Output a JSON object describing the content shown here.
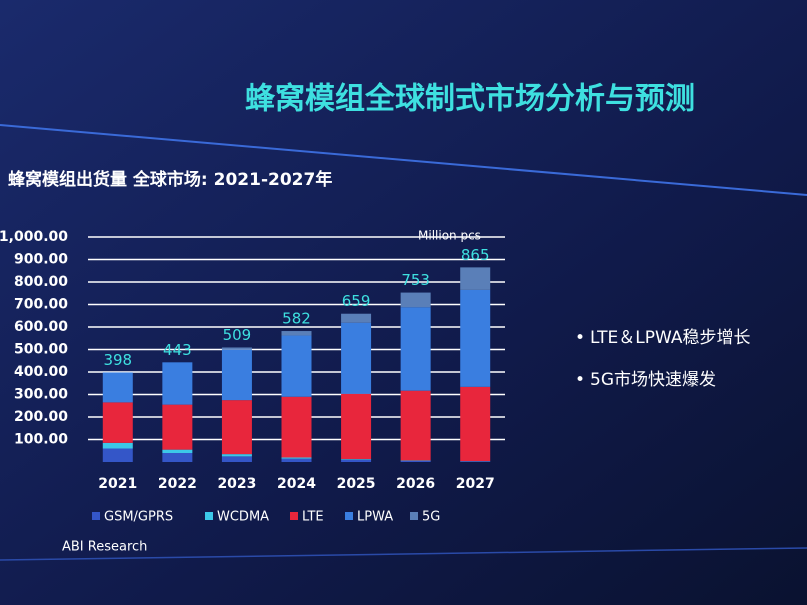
{
  "chart_data": {
    "type": "stacked-bar",
    "title": "蜂窝模组全球制式市场分析与预测",
    "subtitle": "蜂窝模组出货量  全球市场: 2021-2027年",
    "unit": "Million pcs",
    "categories": [
      "2021",
      "2022",
      "2023",
      "2024",
      "2025",
      "2026",
      "2027"
    ],
    "series": [
      {
        "name": "GSM/GPRS",
        "color": "#3456c8",
        "values": [
          60,
          40,
          25,
          15,
          10,
          5,
          3
        ]
      },
      {
        "name": "WCDMA",
        "color": "#3cc8e8",
        "values": [
          25,
          15,
          10,
          5,
          3,
          2,
          1
        ]
      },
      {
        "name": "LTE",
        "color": "#e8263c",
        "values": [
          180,
          200,
          240,
          270,
          290,
          310,
          330
        ]
      },
      {
        "name": "LPWA",
        "color": "#3a7ee0",
        "values": [
          133,
          188,
          224,
          272,
          316,
          371,
          431
        ]
      },
      {
        "name": "5G",
        "color": "#5a7fb8",
        "values": [
          0,
          0,
          10,
          20,
          40,
          65,
          100
        ]
      }
    ],
    "totals": [
      398,
      443,
      509,
      582,
      659,
      753,
      865
    ],
    "ylim": [
      0,
      1000
    ],
    "yticks": [
      {
        "value": 100,
        "label": "100.00"
      },
      {
        "value": 200,
        "label": "200.00"
      },
      {
        "value": 300,
        "label": "300.00"
      },
      {
        "value": 400,
        "label": "400.00"
      },
      {
        "value": 500,
        "label": "500.00"
      },
      {
        "value": 600,
        "label": "600.00"
      },
      {
        "value": 700,
        "label": "700.00"
      },
      {
        "value": 800,
        "label": "800.00"
      },
      {
        "value": 900,
        "label": "900.00"
      },
      {
        "value": 1000,
        "label": "1,000.00"
      }
    ],
    "grid": true,
    "bullets": [
      "LTE＆LPWA稳步增长",
      "5G市场快速爆发"
    ],
    "source": "ABI Research"
  }
}
